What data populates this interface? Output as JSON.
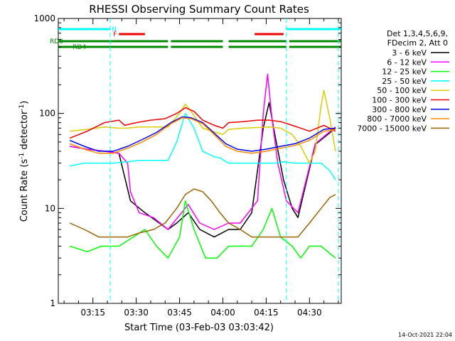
{
  "chart_data": {
    "type": "line",
    "title": "RHESSI Observing Summary Count Rates",
    "xlabel": "Start Time (03-Feb-03 03:03:42)",
    "ylabel_parts": [
      "Count Rate (s",
      "-1",
      " detector",
      "-1",
      ")"
    ],
    "y_scale": "log",
    "ylim": [
      1,
      1000
    ],
    "xlim_minutes": [
      3.0,
      101.0
    ],
    "y_ticks": [
      {
        "value": 1,
        "label": "1"
      },
      {
        "value": 10,
        "label": "10"
      },
      {
        "value": 100,
        "label": "100"
      },
      {
        "value": 1000,
        "label": "1000"
      }
    ],
    "x_ticks": [
      {
        "minute": 15,
        "label": "03:15"
      },
      {
        "minute": 30,
        "label": "03:30"
      },
      {
        "minute": 45,
        "label": "03:45"
      },
      {
        "minute": 60,
        "label": "04:00"
      },
      {
        "minute": 75,
        "label": "04:15"
      },
      {
        "minute": 90,
        "label": "04:30"
      }
    ],
    "legend_header": [
      "Det 1,3,4,5,6,9,",
      "FDecim 2, Att 0"
    ],
    "legend_position": "right",
    "series": [
      {
        "name": "3 - 6 keV",
        "color": "#000000",
        "points": [
          [
            7,
            45
          ],
          [
            13,
            42
          ],
          [
            19,
            40
          ],
          [
            24,
            38
          ],
          [
            28,
            12
          ],
          [
            33,
            9
          ],
          [
            38,
            7
          ],
          [
            41,
            6
          ],
          [
            44,
            7
          ],
          [
            48,
            9
          ],
          [
            52,
            6
          ],
          [
            57,
            5
          ],
          [
            62,
            6
          ],
          [
            66,
            6
          ],
          [
            70,
            9
          ],
          [
            74,
            70
          ],
          [
            76,
            130
          ],
          [
            78,
            60
          ],
          [
            81,
            20
          ],
          [
            84,
            10
          ],
          [
            86,
            8
          ],
          [
            92,
            47
          ],
          [
            99,
            70
          ]
        ]
      },
      {
        "name": "6 - 12 keV",
        "color": "#ff00ff",
        "points": [
          [
            7,
            45
          ],
          [
            13,
            42
          ],
          [
            19,
            40
          ],
          [
            24,
            38
          ],
          [
            27,
            30
          ],
          [
            28,
            15
          ],
          [
            31,
            9
          ],
          [
            36,
            8
          ],
          [
            41,
            6
          ],
          [
            48,
            11
          ],
          [
            52,
            7
          ],
          [
            57,
            6
          ],
          [
            62,
            7
          ],
          [
            66,
            7
          ],
          [
            72,
            12
          ],
          [
            74,
            100
          ],
          [
            75.5,
            260
          ],
          [
            77,
            90
          ],
          [
            79,
            30
          ],
          [
            82,
            12
          ],
          [
            86,
            9
          ],
          [
            92,
            48
          ],
          [
            99,
            72
          ]
        ]
      },
      {
        "name": "12 - 25 keV",
        "color": "#00ff00",
        "points": [
          [
            7,
            4
          ],
          [
            13,
            3.5
          ],
          [
            18,
            4
          ],
          [
            24,
            4
          ],
          [
            29,
            5
          ],
          [
            33,
            6
          ],
          [
            37,
            4
          ],
          [
            41,
            3
          ],
          [
            45,
            5
          ],
          [
            47,
            12
          ],
          [
            50,
            6
          ],
          [
            54,
            3
          ],
          [
            58,
            3
          ],
          [
            62,
            4
          ],
          [
            66,
            4
          ],
          [
            70,
            4
          ],
          [
            74,
            6
          ],
          [
            77,
            10
          ],
          [
            80,
            5
          ],
          [
            84,
            4
          ],
          [
            87,
            3
          ],
          [
            90,
            4
          ],
          [
            94,
            4
          ],
          [
            99,
            3
          ]
        ]
      },
      {
        "name": "25 - 50 keV",
        "color": "#00ffff",
        "points": [
          [
            7,
            28
          ],
          [
            12,
            30
          ],
          [
            17,
            30
          ],
          [
            22,
            30
          ],
          [
            27,
            31
          ],
          [
            31,
            32
          ],
          [
            36,
            32
          ],
          [
            41,
            32
          ],
          [
            44,
            50
          ],
          [
            47,
            100
          ],
          [
            50,
            70
          ],
          [
            53,
            40
          ],
          [
            57,
            35
          ],
          [
            59,
            34
          ],
          [
            62,
            30
          ],
          [
            67,
            30
          ],
          [
            72,
            30
          ],
          [
            75,
            30
          ],
          [
            78,
            30
          ],
          [
            81,
            31
          ],
          [
            85,
            30
          ],
          [
            88,
            30
          ],
          [
            91,
            30
          ],
          [
            94,
            30
          ],
          [
            97,
            25
          ],
          [
            99,
            20
          ]
        ]
      },
      {
        "name": "50 - 100 keV",
        "color": "#ddcc00",
        "points": [
          [
            7,
            65
          ],
          [
            13,
            68
          ],
          [
            19,
            72
          ],
          [
            24,
            70
          ],
          [
            27,
            70
          ],
          [
            31,
            72
          ],
          [
            36,
            72
          ],
          [
            41,
            72
          ],
          [
            45,
            100
          ],
          [
            47,
            125
          ],
          [
            49,
            105
          ],
          [
            53,
            70
          ],
          [
            57,
            64
          ],
          [
            60,
            60
          ],
          [
            62,
            68
          ],
          [
            67,
            70
          ],
          [
            72,
            71
          ],
          [
            76,
            72
          ],
          [
            80,
            70
          ],
          [
            84,
            60
          ],
          [
            87,
            45
          ],
          [
            90,
            30
          ],
          [
            92,
            40
          ],
          [
            94,
            120
          ],
          [
            95,
            175
          ],
          [
            97,
            90
          ],
          [
            99,
            40
          ]
        ]
      },
      {
        "name": "100 - 300 keV",
        "color": "#ee0000",
        "points": [
          [
            7,
            55
          ],
          [
            13,
            65
          ],
          [
            19,
            80
          ],
          [
            24,
            85
          ],
          [
            26,
            75
          ],
          [
            30,
            80
          ],
          [
            35,
            85
          ],
          [
            40,
            88
          ],
          [
            44,
            100
          ],
          [
            47,
            115
          ],
          [
            50,
            105
          ],
          [
            53,
            85
          ],
          [
            57,
            75
          ],
          [
            60,
            70
          ],
          [
            62,
            80
          ],
          [
            67,
            82
          ],
          [
            72,
            85
          ],
          [
            76,
            85
          ],
          [
            80,
            82
          ],
          [
            84,
            75
          ],
          [
            87,
            70
          ],
          [
            90,
            65
          ],
          [
            95,
            75
          ],
          [
            99,
            65
          ]
        ]
      },
      {
        "name": "300 - 800 keV",
        "color": "#0000ee",
        "points": [
          [
            7,
            52
          ],
          [
            12,
            45
          ],
          [
            17,
            40
          ],
          [
            22,
            40
          ],
          [
            27,
            45
          ],
          [
            32,
            53
          ],
          [
            37,
            63
          ],
          [
            42,
            80
          ],
          [
            46,
            92
          ],
          [
            49,
            90
          ],
          [
            53,
            80
          ],
          [
            57,
            62
          ],
          [
            61,
            48
          ],
          [
            65,
            42
          ],
          [
            70,
            40
          ],
          [
            75,
            42
          ],
          [
            80,
            45
          ],
          [
            85,
            48
          ],
          [
            90,
            55
          ],
          [
            95,
            68
          ],
          [
            99,
            70
          ]
        ]
      },
      {
        "name": "800 - 7000 keV",
        "color": "#ff8800",
        "points": [
          [
            7,
            48
          ],
          [
            12,
            42
          ],
          [
            17,
            38
          ],
          [
            22,
            38
          ],
          [
            27,
            43
          ],
          [
            32,
            50
          ],
          [
            37,
            60
          ],
          [
            42,
            78
          ],
          [
            46,
            90
          ],
          [
            49,
            88
          ],
          [
            53,
            78
          ],
          [
            57,
            60
          ],
          [
            61,
            45
          ],
          [
            65,
            40
          ],
          [
            70,
            38
          ],
          [
            75,
            40
          ],
          [
            80,
            43
          ],
          [
            85,
            46
          ],
          [
            90,
            52
          ],
          [
            95,
            65
          ],
          [
            99,
            68
          ]
        ]
      },
      {
        "name": "7000 - 15000 keV",
        "color": "#996600",
        "points": [
          [
            7,
            7
          ],
          [
            12,
            6
          ],
          [
            17,
            5
          ],
          [
            22,
            5
          ],
          [
            27,
            5
          ],
          [
            31,
            5.5
          ],
          [
            36,
            6
          ],
          [
            40,
            7
          ],
          [
            44,
            10
          ],
          [
            47,
            14
          ],
          [
            50,
            16
          ],
          [
            53,
            15
          ],
          [
            56,
            12
          ],
          [
            59,
            9
          ],
          [
            62,
            7
          ],
          [
            66,
            6
          ],
          [
            70,
            5
          ],
          [
            74,
            5
          ],
          [
            78,
            5
          ],
          [
            82,
            5
          ],
          [
            86,
            5
          ],
          [
            90,
            7
          ],
          [
            94,
            10
          ],
          [
            97,
            13
          ],
          [
            99,
            14
          ]
        ]
      }
    ]
  },
  "state_bars": {
    "N_label": "N",
    "F_label": "F",
    "RD0_label": "RD0",
    "RD4_label": "RD4",
    "night_segments": [
      [
        3,
        21
      ],
      [
        82,
        101
      ]
    ],
    "flare_segments": [
      [
        24,
        33
      ],
      [
        71,
        81
      ]
    ],
    "rd0_segments": [
      [
        3,
        41
      ],
      [
        42,
        60
      ],
      [
        62,
        82
      ],
      [
        83,
        101
      ]
    ],
    "rd4_segments": [
      [
        3,
        41
      ],
      [
        42,
        60
      ],
      [
        62,
        82
      ],
      [
        83,
        101
      ]
    ],
    "saa_boundaries_minutes": [
      21,
      82,
      100
    ]
  },
  "timestamp": "14-Oct-2021 22:04",
  "colors": {
    "axis": "#000000",
    "night": "#00ffff",
    "flare": "#ee0000",
    "rd": "#008800"
  }
}
